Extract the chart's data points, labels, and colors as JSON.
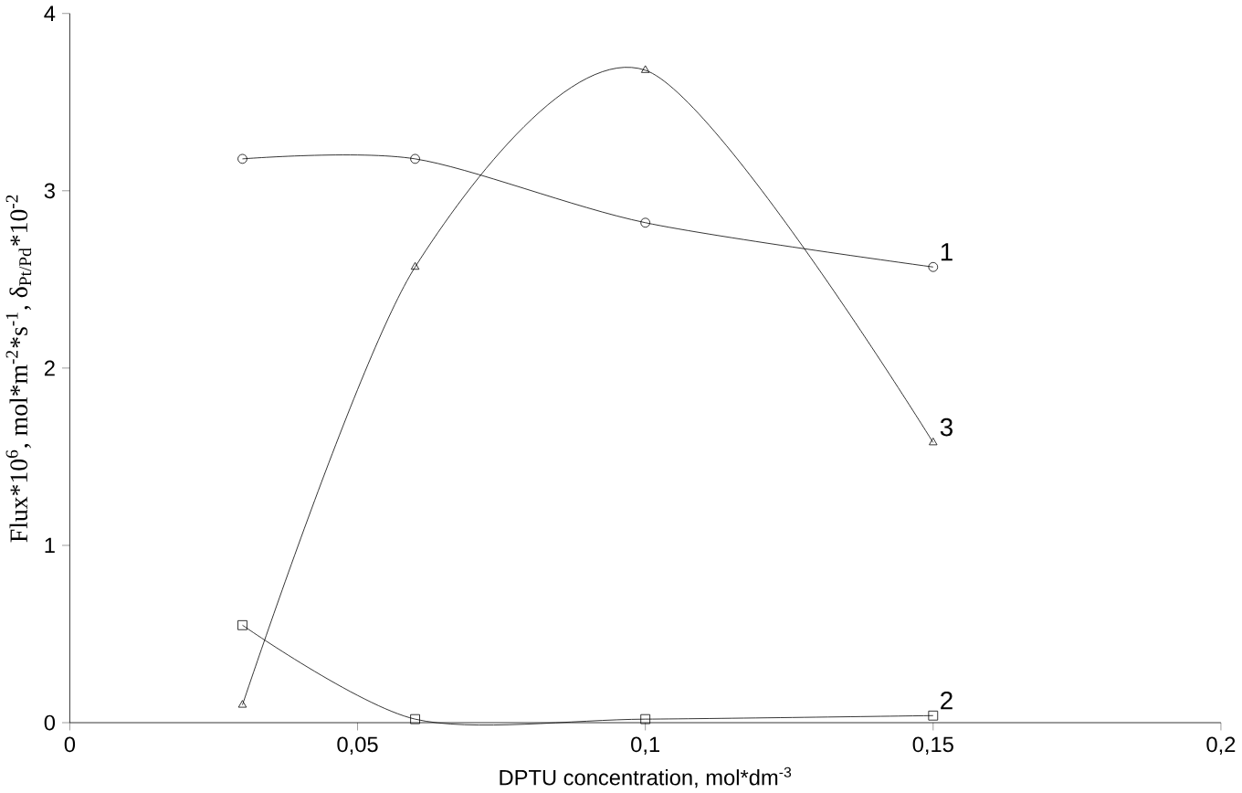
{
  "chart_data": {
    "type": "line",
    "xlabel": "DPTU concentration, mol*dm$^{-3}$",
    "ylabel": "Flux*10$^{6}$, mol*m$^{-2}$*s$^{-1}$, δ$_{Pt/Pd}$*10$^{-2}$",
    "x": [
      0.03,
      0.06,
      0.1,
      0.15
    ],
    "series": [
      {
        "name": "1",
        "color": "#000000",
        "marker": "circle",
        "values": [
          3.18,
          3.18,
          2.82,
          2.57
        ]
      },
      {
        "name": "2",
        "color": "#000000",
        "marker": "square",
        "values": [
          0.55,
          0.02,
          0.02,
          0.04
        ]
      },
      {
        "name": "3",
        "color": "#000000",
        "marker": "triangle",
        "values": [
          0.1,
          2.57,
          3.68,
          1.58
        ]
      }
    ],
    "xlim": [
      0,
      0.2
    ],
    "ylim": [
      0,
      4
    ],
    "xticks": [
      0,
      {
        "value": 0.05,
        "label": "0,05"
      },
      {
        "value": 0.1,
        "label": "0,1"
      },
      {
        "value": 0.15,
        "label": "0,15"
      },
      {
        "value": 0.2,
        "label": "0,2"
      }
    ],
    "yticks": [
      0,
      1,
      2,
      3,
      4
    ],
    "grid": false,
    "line_style": "solid"
  }
}
